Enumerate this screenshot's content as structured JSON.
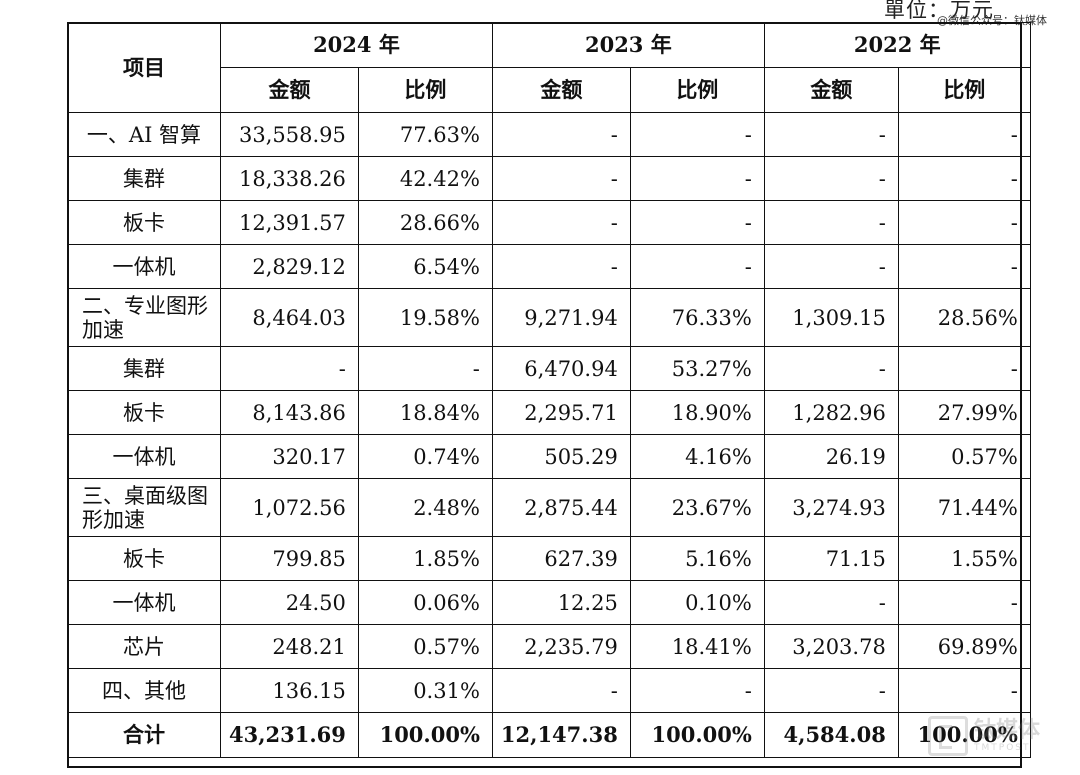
{
  "unit_label": "單位：万元",
  "watermark_top": "@微信公众号：钛媒体",
  "watermark_logo": "钛媒体 TMTPOST",
  "header": {
    "item_label": "项目",
    "years": [
      "2024 年",
      "2023 年",
      "2022 年"
    ],
    "amount_label": "金额",
    "ratio_label": "比例"
  },
  "rows": [
    {
      "name": "一、AI 智算",
      "v": [
        "33,558.95",
        "77.63%",
        "-",
        "-",
        "-",
        "-"
      ]
    },
    {
      "name": "集群",
      "v": [
        "18,338.26",
        "42.42%",
        "-",
        "-",
        "-",
        "-"
      ]
    },
    {
      "name": "板卡",
      "v": [
        "12,391.57",
        "28.66%",
        "-",
        "-",
        "-",
        "-"
      ]
    },
    {
      "name": "一体机",
      "v": [
        "2,829.12",
        "6.54%",
        "-",
        "-",
        "-",
        "-"
      ]
    },
    {
      "name": "二、专业图形加速",
      "v": [
        "8,464.03",
        "19.58%",
        "9,271.94",
        "76.33%",
        "1,309.15",
        "28.56%"
      ]
    },
    {
      "name": "集群",
      "v": [
        "-",
        "-",
        "6,470.94",
        "53.27%",
        "-",
        "-"
      ]
    },
    {
      "name": "板卡",
      "v": [
        "8,143.86",
        "18.84%",
        "2,295.71",
        "18.90%",
        "1,282.96",
        "27.99%"
      ]
    },
    {
      "name": "一体机",
      "v": [
        "320.17",
        "0.74%",
        "505.29",
        "4.16%",
        "26.19",
        "0.57%"
      ]
    },
    {
      "name": "三、桌面级图形加速",
      "v": [
        "1,072.56",
        "2.48%",
        "2,875.44",
        "23.67%",
        "3,274.93",
        "71.44%"
      ]
    },
    {
      "name": "板卡",
      "v": [
        "799.85",
        "1.85%",
        "627.39",
        "5.16%",
        "71.15",
        "1.55%"
      ]
    },
    {
      "name": "一体机",
      "v": [
        "24.50",
        "0.06%",
        "12.25",
        "0.10%",
        "-",
        "-"
      ]
    },
    {
      "name": "芯片",
      "v": [
        "248.21",
        "0.57%",
        "2,235.79",
        "18.41%",
        "3,203.78",
        "69.89%"
      ]
    },
    {
      "name": "四、其他",
      "v": [
        "136.15",
        "0.31%",
        "-",
        "-",
        "-",
        "-"
      ]
    },
    {
      "name": "合计",
      "v": [
        "43,231.69",
        "100.00%",
        "12,147.38",
        "100.00%",
        "4,584.08",
        "100.00%"
      ]
    }
  ]
}
